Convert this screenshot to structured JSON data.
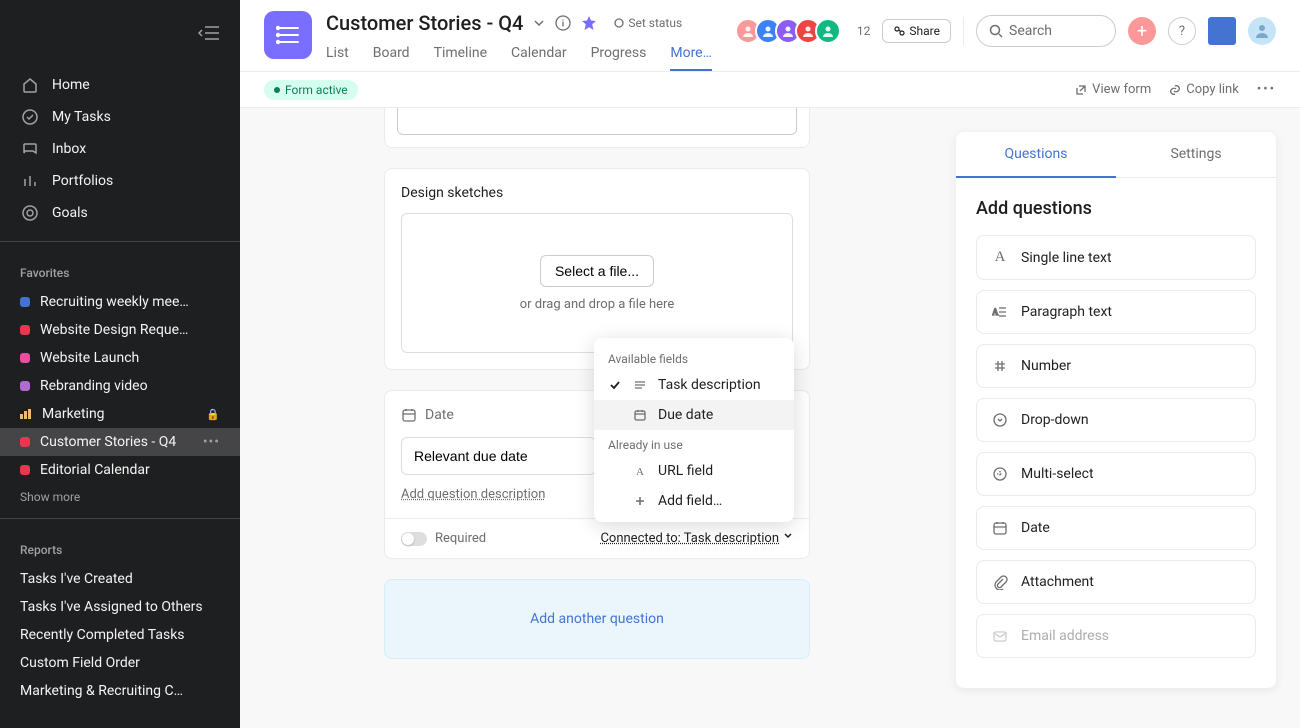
{
  "colors": {
    "sidebar_bg": "#1e1f21",
    "project_icon": "#796eff",
    "accent_blue": "#4573d2",
    "form_status_bg": "#d5fef1",
    "form_status_text": "#0d7f56",
    "add_question_bg": "#eaf6fb",
    "plus_btn": "#fc979a"
  },
  "sidebar": {
    "nav": [
      {
        "label": "Home"
      },
      {
        "label": "My Tasks"
      },
      {
        "label": "Inbox"
      },
      {
        "label": "Portfolios"
      },
      {
        "label": "Goals"
      }
    ],
    "favorites_label": "Favorites",
    "favorites": [
      {
        "label": "Recruiting weekly mee…",
        "dot": "#4573d2"
      },
      {
        "label": "Website Design Reque…",
        "dot": "#e8384f"
      },
      {
        "label": "Website Launch",
        "dot": "#ea4e9d"
      },
      {
        "label": "Rebranding video",
        "dot": "#b36bd4"
      },
      {
        "label": "Marketing",
        "bars": true,
        "locked": true
      },
      {
        "label": "Customer Stories - Q4",
        "dot": "#e8384f",
        "active": true,
        "more": true
      },
      {
        "label": "Editorial Calendar",
        "dot": "#e8384f"
      }
    ],
    "show_more": "Show more",
    "reports_label": "Reports",
    "reports": [
      "Tasks I've Created",
      "Tasks I've Assigned to Others",
      "Recently Completed Tasks",
      "Custom Field Order",
      "Marketing & Recruiting C…"
    ]
  },
  "header": {
    "title": "Customer Stories - Q4",
    "set_status": "Set status",
    "tabs": [
      "List",
      "Board",
      "Timeline",
      "Calendar",
      "Progress",
      "More…"
    ],
    "active_tab": 5,
    "avatar_colors": [
      "#fc979a",
      "#3b82f6",
      "#8b5cf6",
      "#ef4444",
      "#10b981"
    ],
    "avatar_count": "12",
    "share": "Share",
    "search_placeholder": "Search"
  },
  "subheader": {
    "status": "Form active",
    "view_form": "View form",
    "copy_link": "Copy link"
  },
  "form": {
    "design_label": "Design sketches",
    "select_file": "Select a file...",
    "drop_hint": "or drag and drop a file here",
    "date_label": "Date",
    "date_value": "Relevant due date",
    "q_desc": "Add question description",
    "required": "Required",
    "connected": "Connected to: Task description",
    "add_another": "Add another question"
  },
  "popover": {
    "available": "Available fields",
    "items_avail": [
      {
        "label": "Task description",
        "checked": true,
        "icon": "text"
      },
      {
        "label": "Due date",
        "highlight": true,
        "icon": "calendar"
      }
    ],
    "in_use": "Already in use",
    "items_used": [
      {
        "label": "URL field",
        "icon": "letter"
      }
    ],
    "add_field": "Add field…"
  },
  "right_panel": {
    "tabs": [
      "Questions",
      "Settings"
    ],
    "active_tab": 0,
    "title": "Add questions",
    "types": [
      {
        "label": "Single line text",
        "icon": "A"
      },
      {
        "label": "Paragraph text",
        "icon": "para"
      },
      {
        "label": "Number",
        "icon": "hash"
      },
      {
        "label": "Drop-down",
        "icon": "dropdown"
      },
      {
        "label": "Multi-select",
        "icon": "multi"
      },
      {
        "label": "Date",
        "icon": "calendar"
      },
      {
        "label": "Attachment",
        "icon": "clip"
      },
      {
        "label": "Email address",
        "icon": "mail",
        "disabled": true
      }
    ]
  }
}
